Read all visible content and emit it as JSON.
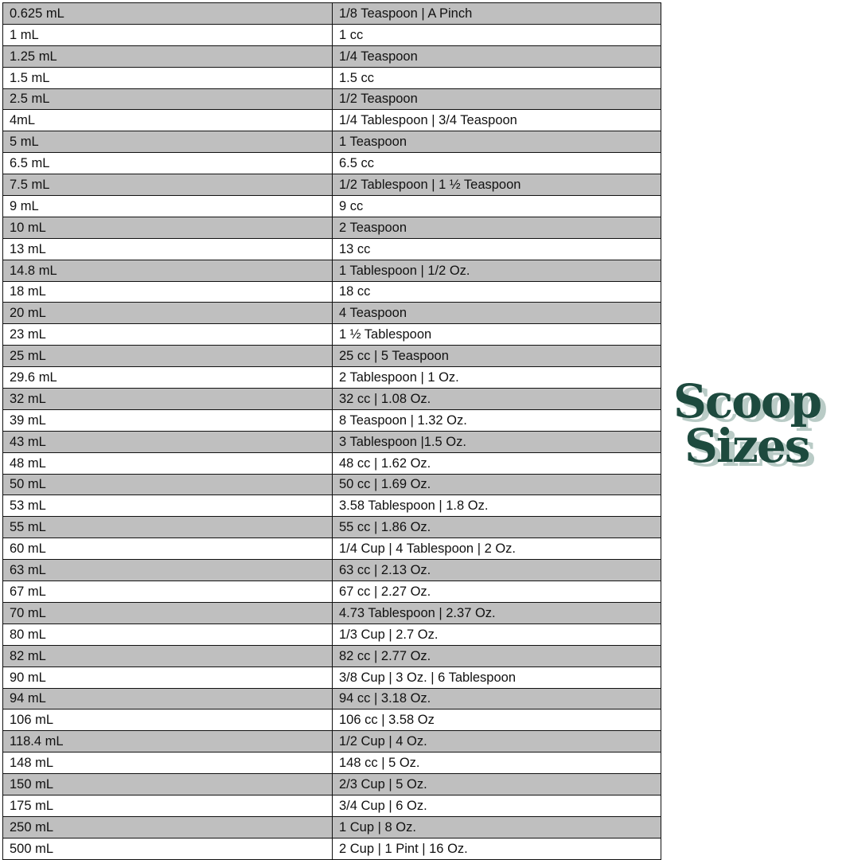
{
  "title": {
    "line1": "Scoop",
    "line2": "Sizes",
    "color": "#1d4a3e",
    "shadow_color": "#b9cbc6"
  },
  "table": {
    "row_colors": [
      "#bfbfbf",
      "#ffffff"
    ],
    "rows": [
      [
        "0.625 mL",
        "1/8 Teaspoon | A Pinch"
      ],
      [
        "1 mL",
        "1 cc"
      ],
      [
        "1.25 mL",
        "1/4 Teaspoon"
      ],
      [
        "1.5 mL",
        "1.5 cc"
      ],
      [
        "2.5 mL",
        "1/2 Teaspoon"
      ],
      [
        "4mL",
        "1/4 Tablespoon | 3/4 Teaspoon"
      ],
      [
        "5 mL",
        "1 Teaspoon"
      ],
      [
        "6.5 mL",
        "6.5 cc"
      ],
      [
        "7.5 mL",
        "1/2 Tablespoon | 1 ½ Teaspoon"
      ],
      [
        "9 mL",
        "9 cc"
      ],
      [
        "10 mL",
        "2 Teaspoon"
      ],
      [
        "13 mL",
        "13 cc"
      ],
      [
        "14.8 mL",
        "1 Tablespoon | 1/2 Oz."
      ],
      [
        "18 mL",
        "18 cc"
      ],
      [
        "20 mL",
        "4 Teaspoon"
      ],
      [
        "23 mL",
        "1 ½ Tablespoon"
      ],
      [
        "25 mL",
        "25 cc | 5 Teaspoon"
      ],
      [
        "29.6 mL",
        "2 Tablespoon | 1 Oz."
      ],
      [
        "32 mL",
        "32 cc | 1.08 Oz."
      ],
      [
        "39 mL",
        "8 Teaspoon | 1.32 Oz."
      ],
      [
        "43 mL",
        "3 Tablespoon |1.5 Oz."
      ],
      [
        "48 mL",
        "48 cc | 1.62 Oz."
      ],
      [
        "50 mL",
        "50 cc | 1.69 Oz."
      ],
      [
        "53 mL",
        "3.58 Tablespoon | 1.8 Oz."
      ],
      [
        "55 mL",
        "55 cc | 1.86 Oz."
      ],
      [
        "60 mL",
        "1/4 Cup | 4 Tablespoon | 2 Oz."
      ],
      [
        "63 mL",
        "63 cc | 2.13 Oz."
      ],
      [
        "67 mL",
        "67 cc | 2.27 Oz."
      ],
      [
        "70 mL",
        "4.73 Tablespoon | 2.37 Oz."
      ],
      [
        "80 mL",
        "1/3 Cup | 2.7 Oz."
      ],
      [
        "82 mL",
        "82 cc | 2.77 Oz."
      ],
      [
        "90 mL",
        "3/8 Cup | 3 Oz. | 6 Tablespoon"
      ],
      [
        "94 mL",
        "94 cc | 3.18 Oz."
      ],
      [
        "106 mL",
        "106 cc | 3.58 Oz"
      ],
      [
        "118.4 mL",
        "1/2 Cup | 4 Oz."
      ],
      [
        "148 mL",
        "148 cc | 5 Oz."
      ],
      [
        "150 mL",
        "2/3 Cup | 5 Oz."
      ],
      [
        "175 mL",
        "3/4 Cup | 6 Oz."
      ],
      [
        "250 mL",
        "1 Cup | 8 Oz."
      ],
      [
        "500 mL",
        "2 Cup | 1 Pint | 16 Oz."
      ]
    ]
  }
}
